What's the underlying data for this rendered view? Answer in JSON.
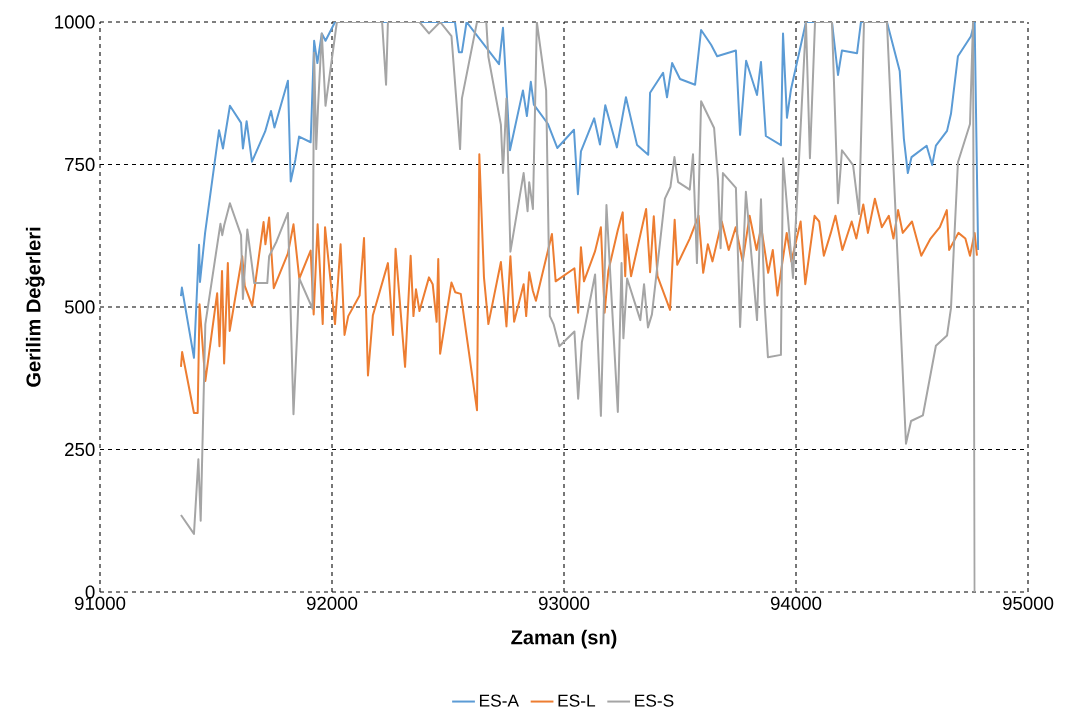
{
  "chart_data": {
    "type": "line",
    "xlabel": "Zaman (sn)",
    "ylabel": "Gerilim Değerleri",
    "xlim": [
      91000,
      95000
    ],
    "xticks": [
      91000,
      92000,
      93000,
      94000,
      95000
    ],
    "ylim": [
      0,
      1000
    ],
    "yticks": [
      0,
      250,
      500,
      750,
      1000
    ],
    "grid": true,
    "legend": "bottom",
    "line_style": "solid",
    "marker": "none",
    "series": [
      {
        "name": "ES-A",
        "color": "#5b9bd5",
        "x": [
          91349,
          91353,
          91405,
          91427,
          91431,
          91453,
          91513,
          91530,
          91560,
          91608,
          91616,
          91632,
          91655,
          91712,
          91737,
          91752,
          91810,
          91822,
          91842,
          91858,
          91908,
          91923,
          91937,
          91956,
          91972,
          92013,
          92530,
          92547,
          92560,
          92580,
          92720,
          92737,
          92767,
          92823,
          92840,
          92857,
          92870,
          92931,
          92971,
          93043,
          93060,
          93073,
          93130,
          93155,
          93178,
          93228,
          93267,
          93315,
          93363,
          93371,
          93427,
          93444,
          93466,
          93500,
          93565,
          93591,
          93634,
          93660,
          93741,
          93759,
          93785,
          93832,
          93849,
          93870,
          93935,
          93944,
          93961,
          93978,
          94043,
          94155,
          94181,
          94198,
          94263,
          94280,
          94392,
          94447,
          94465,
          94482,
          94498,
          94563,
          94587,
          94603,
          94651,
          94668,
          94698,
          94754,
          94770,
          94785
        ],
        "values": [
          519,
          534,
          411,
          609,
          544,
          630,
          810,
          778,
          853,
          823,
          778,
          826,
          755,
          808,
          844,
          815,
          897,
          720,
          758,
          799,
          789,
          967,
          928,
          980,
          967,
          1000,
          1000,
          947,
          947,
          1000,
          926,
          990,
          775,
          880,
          835,
          895,
          855,
          821,
          779,
          811,
          698,
          773,
          831,
          785,
          854,
          780,
          868,
          784,
          767,
          876,
          911,
          868,
          928,
          900,
          890,
          986,
          960,
          940,
          950,
          802,
          932,
          872,
          930,
          800,
          784,
          980,
          832,
          881,
          1000,
          1000,
          907,
          950,
          945,
          1000,
          1000,
          914,
          795,
          735,
          763,
          783,
          749,
          783,
          809,
          839,
          940,
          975,
          1000,
          600
        ]
      },
      {
        "name": "ES-L",
        "color": "#ed7d31",
        "x": [
          91349,
          91354,
          91405,
          91421,
          91429,
          91454,
          91494,
          91505,
          91515,
          91526,
          91535,
          91551,
          91559,
          91613,
          91624,
          91656,
          91705,
          91713,
          91729,
          91749,
          91810,
          91834,
          91859,
          91908,
          91921,
          91938,
          91960,
          91970,
          92013,
          92037,
          92054,
          92070,
          92119,
          92138,
          92155,
          92176,
          92241,
          92263,
          92274,
          92315,
          92339,
          92351,
          92362,
          92377,
          92418,
          92434,
          92451,
          92458,
          92466,
          92515,
          92531,
          92555,
          92625,
          92635,
          92655,
          92674,
          92728,
          92752,
          92769,
          92785,
          92826,
          92837,
          92850,
          92866,
          92879,
          92948,
          92964,
          93045,
          93061,
          93073,
          93086,
          93134,
          93159,
          93175,
          93191,
          93232,
          93253,
          93264,
          93269,
          93289,
          93354,
          93371,
          93387,
          93403,
          93457,
          93477,
          93488,
          93542,
          93580,
          93600,
          93620,
          93640,
          93680,
          93710,
          93740,
          93770,
          93800,
          93830,
          93850,
          93880,
          93900,
          93920,
          93960,
          93980,
          94020,
          94040,
          94080,
          94100,
          94120,
          94150,
          94170,
          94200,
          94240,
          94260,
          94290,
          94310,
          94340,
          94370,
          94400,
          94420,
          94440,
          94460,
          94500,
          94540,
          94580,
          94620,
          94650,
          94660,
          94700,
          94730,
          94750,
          94770,
          94780
        ],
        "values": [
          395,
          421,
          314,
          314,
          505,
          370,
          491,
          524,
          431,
          563,
          401,
          577,
          458,
          589,
          537,
          502,
          649,
          610,
          657,
          533,
          594,
          645,
          550,
          599,
          487,
          645,
          470,
          640,
          470,
          610,
          451,
          484,
          520,
          621,
          380,
          485,
          577,
          451,
          602,
          395,
          590,
          484,
          531,
          493,
          552,
          540,
          474,
          584,
          418,
          543,
          526,
          523,
          319,
          768,
          552,
          470,
          579,
          466,
          589,
          474,
          540,
          484,
          561,
          528,
          511,
          628,
          545,
          568,
          490,
          605,
          545,
          598,
          640,
          490,
          563,
          635,
          666,
          554,
          627,
          554,
          672,
          561,
          659,
          554,
          495,
          653,
          574,
          620,
          660,
          560,
          610,
          580,
          650,
          600,
          640,
          580,
          660,
          600,
          640,
          560,
          600,
          520,
          630,
          580,
          650,
          540,
          660,
          650,
          590,
          630,
          660,
          600,
          650,
          620,
          680,
          630,
          690,
          640,
          660,
          620,
          670,
          630,
          650,
          590,
          620,
          640,
          670,
          600,
          630,
          620,
          590,
          630,
          590
        ]
      },
      {
        "name": "ES-S",
        "color": "#a5a5a5",
        "x": [
          91349,
          91405,
          91424,
          91434,
          91454,
          91519,
          91527,
          91535,
          91560,
          91608,
          91616,
          91635,
          91665,
          91721,
          91729,
          91761,
          91810,
          91834,
          91850,
          91859,
          91916,
          91923,
          91932,
          91940,
          91956,
          91972,
          92021,
          92216,
          92233,
          92241,
          92377,
          92418,
          92466,
          92515,
          92552,
          92560,
          92625,
          92665,
          92674,
          92728,
          92737,
          92752,
          92769,
          92826,
          92843,
          92850,
          92866,
          92883,
          92923,
          92939,
          92955,
          92980,
          93045,
          93061,
          93077,
          93134,
          93159,
          93183,
          93232,
          93248,
          93256,
          93272,
          93329,
          93345,
          93362,
          93379,
          93435,
          93459,
          93476,
          93492,
          93542,
          93556,
          93573,
          93591,
          93647,
          93664,
          93675,
          93685,
          93741,
          93759,
          93784,
          93832,
          93849,
          93865,
          93879,
          93935,
          93944,
          93987,
          94043,
          94060,
          94082,
          94155,
          94181,
          94198,
          94246,
          94272,
          94293,
          94392,
          94474,
          94496,
          94547,
          94603,
          94651,
          94668,
          94698,
          94750,
          94763,
          94770
        ],
        "values": [
          135,
          102,
          233,
          125,
          470,
          646,
          626,
          643,
          682,
          626,
          514,
          636,
          542,
          542,
          589,
          615,
          665,
          312,
          456,
          550,
          497,
          946,
          777,
          853,
          980,
          853,
          1000,
          1000,
          890,
          1000,
          1000,
          980,
          1000,
          975,
          777,
          866,
          1000,
          1000,
          939,
          820,
          735,
          866,
          597,
          735,
          668,
          719,
          672,
          1000,
          880,
          484,
          470,
          431,
          457,
          339,
          438,
          557,
          309,
          679,
          316,
          577,
          445,
          550,
          477,
          540,
          464,
          487,
          690,
          711,
          763,
          719,
          706,
          768,
          577,
          861,
          814,
          723,
          603,
          735,
          709,
          465,
          702,
          477,
          689,
          505,
          412,
          416,
          761,
          551,
          1000,
          761,
          1000,
          1000,
          682,
          775,
          749,
          663,
          1000,
          1000,
          260,
          300,
          310,
          432,
          450,
          498,
          754,
          821,
          1000,
          0
        ]
      }
    ]
  }
}
